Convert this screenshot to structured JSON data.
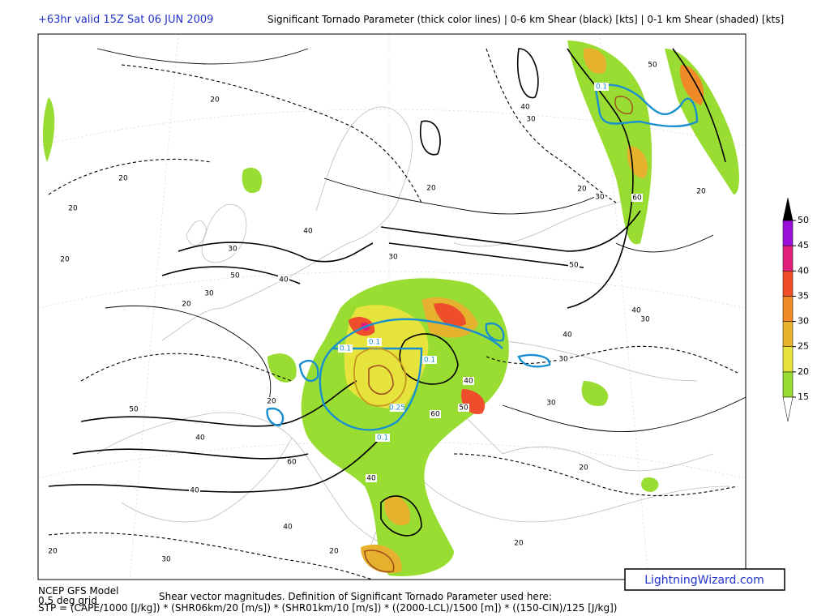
{
  "header": {
    "run": "+63hr valid 15Z Sat 06 JUN 2009",
    "title": "Significant Tornado Parameter (thick color lines) | 0-6 km Shear (black) [kts] | 0-1 km Shear (shaded) [kts]"
  },
  "colorbar": {
    "ticks": [
      15,
      20,
      25,
      30,
      35,
      40,
      45,
      50
    ],
    "colors": [
      "#99dd33",
      "#e6e33c",
      "#e6b22e",
      "#f08a28",
      "#ef4e2c",
      "#e2207c",
      "#9a10d8"
    ],
    "under_color": "#ffffff",
    "over_color": "#000000"
  },
  "map": {
    "contour_labels": [
      "20",
      "20",
      "20",
      "20",
      "30",
      "30",
      "40",
      "50",
      "40",
      "20",
      "30",
      "20",
      "20",
      "30",
      "50",
      "30",
      "40",
      "50",
      "60",
      "20",
      "40",
      "30",
      "40",
      "30",
      "50",
      "40",
      "60",
      "40",
      "40",
      "40",
      "20",
      "20",
      "30",
      "20",
      "40",
      "50",
      "60",
      "20",
      "30",
      "20"
    ],
    "stp_labels": [
      "0.1",
      "0.1",
      "0.1",
      "0.1",
      "0.1",
      "0.25"
    ]
  },
  "footer": {
    "model": "NCEP GFS Model",
    "grid": "0.5 deg grid",
    "note": "Shear vector magnitudes. Definition of Significant Tornado Parameter used here:",
    "formula": "STP = (CAPE/1000 [J/kg]) * (SHR06km/20 [m/s]) * (SHR01km/10 [m/s]) * ((2000-LCL)/1500 [m]) * ((150-CIN)/125 [J/kg])",
    "brand": "LightningWizard.com"
  }
}
